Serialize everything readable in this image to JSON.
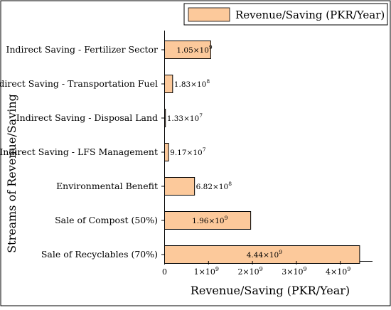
{
  "chart_data": {
    "type": "bar",
    "orientation": "horizontal",
    "xlabel": "Revenue/Saving (PKR/Year)",
    "ylabel": "Streams of Revenue/Saving",
    "legend_placement": "top-right",
    "grid": false,
    "xlim": [
      0,
      4700000000
    ],
    "x_ticks": [
      {
        "value": 0,
        "mant": "0",
        "exp": ""
      },
      {
        "value": 1000000000,
        "mant": "1×10",
        "exp": "9"
      },
      {
        "value": 2000000000,
        "mant": "2×10",
        "exp": "9"
      },
      {
        "value": 3000000000,
        "mant": "3×10",
        "exp": "9"
      },
      {
        "value": 4000000000,
        "mant": "4×10",
        "exp": "9"
      }
    ],
    "categories": [
      "Indirect Saving - Fertilizer Sector",
      "Indirect Saving - Transportation Fuel",
      "Indirect Saving - Disposal Land",
      "Indirect Saving - LFS Management",
      "Environmental Benefit",
      "Sale of Compost (50%)",
      "Sale of Recyclables (70%)"
    ],
    "series": [
      {
        "name": "Revenue/Saving (PKR/Year)",
        "color": "#fcc99b",
        "values": [
          1050000000,
          183000000,
          13300000,
          91700000,
          682000000,
          1960000000,
          4440000000
        ],
        "labels": [
          {
            "mant": "1.05×10",
            "exp": "9"
          },
          {
            "mant": "1.83×10",
            "exp": "8"
          },
          {
            "mant": "1.33×10",
            "exp": "7"
          },
          {
            "mant": "9.17×10",
            "exp": "7"
          },
          {
            "mant": "6.82×10",
            "exp": "8"
          },
          {
            "mant": "1.96×10",
            "exp": "9"
          },
          {
            "mant": "4.44×10",
            "exp": "9"
          }
        ]
      }
    ]
  }
}
